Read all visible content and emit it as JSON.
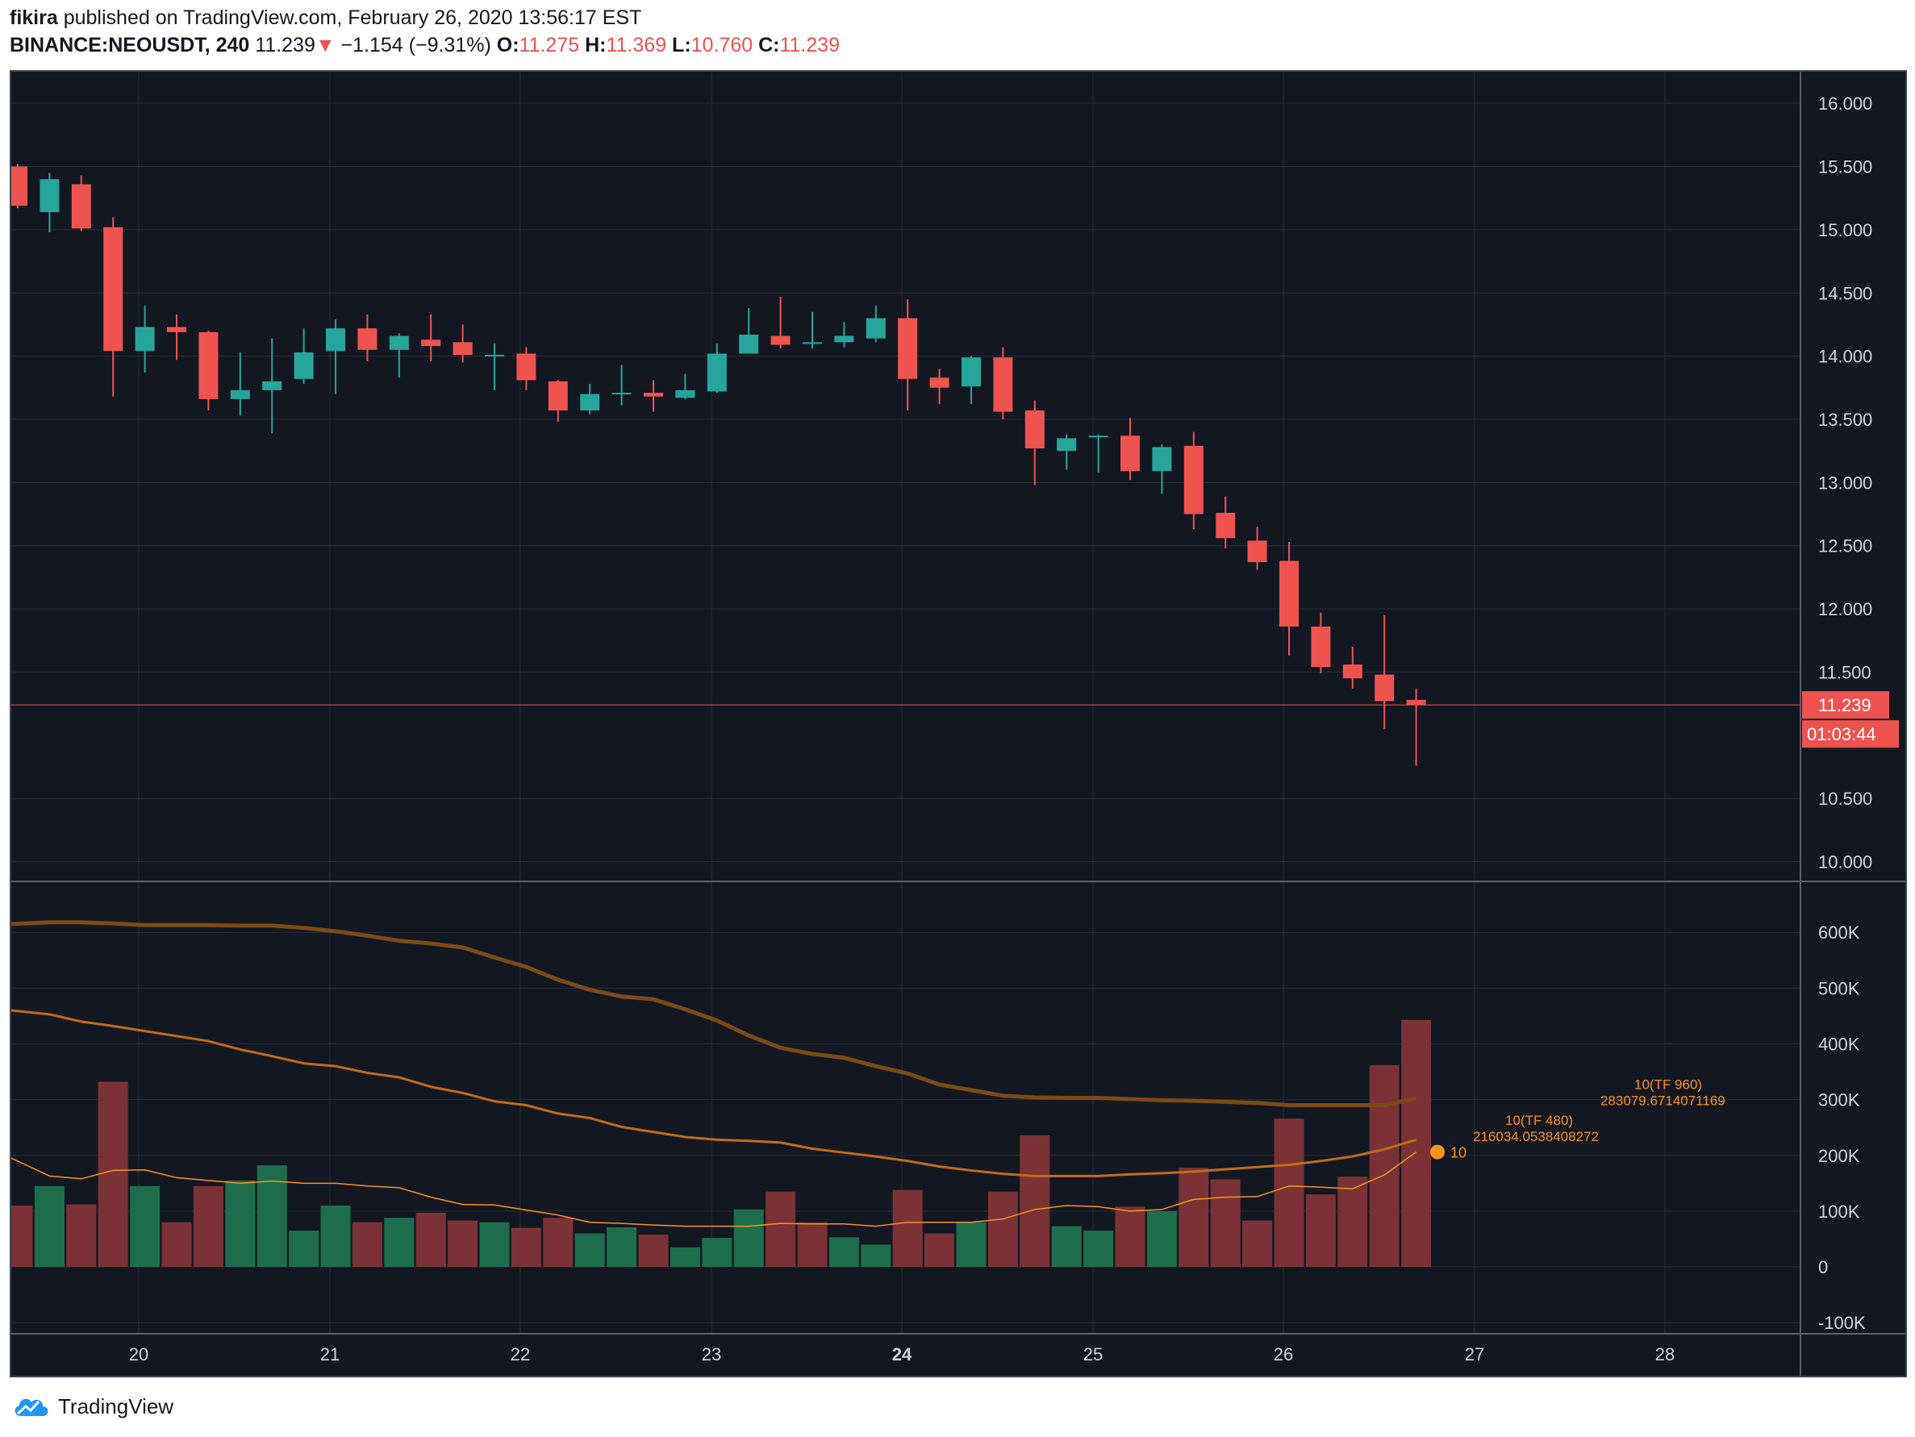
{
  "header": {
    "author": "fikira",
    "published_text": "published on TradingView.com, February 26, 2020 13:56:17 EST",
    "symbol": "BINANCE:NEOUSDT, 240",
    "last": "11.239",
    "change": "−1.154 (−9.31%)",
    "o_label": "O:",
    "o_value": "11.275",
    "h_label": "H:",
    "h_value": "11.369",
    "l_label": "L:",
    "l_value": "10.760",
    "c_label": "C:",
    "c_value": "11.239"
  },
  "footer": {
    "brand": "TradingView"
  },
  "colors": {
    "up": "#26a69a",
    "down": "#ef5350",
    "background": "#131722",
    "grid": "#2a2e39",
    "text": "#d1d4dc",
    "ma": "#f7931a"
  },
  "chart_data": {
    "type": "candlestick",
    "timeframe": "240",
    "x_tick_labels": [
      "20",
      "21",
      "22",
      "23",
      "24",
      "25",
      "26",
      "27",
      "28"
    ],
    "price_axis": {
      "ticks": [
        "16.000",
        "15.500",
        "15.000",
        "14.500",
        "14.000",
        "13.500",
        "13.000",
        "12.500",
        "12.000",
        "11.500",
        "10.500",
        "10.000"
      ],
      "range": [
        9.85,
        16.25
      ]
    },
    "last_price_label": "11.239",
    "countdown_label": "01:03:44",
    "candles": [
      {
        "o": 15.5,
        "h": 15.52,
        "l": 15.17,
        "c": 15.19
      },
      {
        "o": 15.14,
        "h": 15.45,
        "l": 14.98,
        "c": 15.4
      },
      {
        "o": 15.36,
        "h": 15.43,
        "l": 14.99,
        "c": 15.01
      },
      {
        "o": 15.02,
        "h": 15.1,
        "l": 13.68,
        "c": 14.04
      },
      {
        "o": 14.04,
        "h": 14.4,
        "l": 13.87,
        "c": 14.23
      },
      {
        "o": 14.23,
        "h": 14.33,
        "l": 13.97,
        "c": 14.19
      },
      {
        "o": 14.19,
        "h": 14.2,
        "l": 13.57,
        "c": 13.66
      },
      {
        "o": 13.66,
        "h": 14.03,
        "l": 13.53,
        "c": 13.73
      },
      {
        "o": 13.73,
        "h": 14.14,
        "l": 13.39,
        "c": 13.8
      },
      {
        "o": 13.82,
        "h": 14.22,
        "l": 13.78,
        "c": 14.03
      },
      {
        "o": 14.04,
        "h": 14.29,
        "l": 13.7,
        "c": 14.22
      },
      {
        "o": 14.22,
        "h": 14.33,
        "l": 13.96,
        "c": 14.05
      },
      {
        "o": 14.05,
        "h": 14.18,
        "l": 13.83,
        "c": 14.16
      },
      {
        "o": 14.13,
        "h": 14.33,
        "l": 13.96,
        "c": 14.08
      },
      {
        "o": 14.11,
        "h": 14.25,
        "l": 13.95,
        "c": 14.01
      },
      {
        "o": 14.0,
        "h": 14.1,
        "l": 13.73,
        "c": 14.01
      },
      {
        "o": 14.02,
        "h": 14.07,
        "l": 13.73,
        "c": 13.81
      },
      {
        "o": 13.8,
        "h": 13.81,
        "l": 13.48,
        "c": 13.57
      },
      {
        "o": 13.57,
        "h": 13.78,
        "l": 13.54,
        "c": 13.7
      },
      {
        "o": 13.7,
        "h": 13.93,
        "l": 13.61,
        "c": 13.71
      },
      {
        "o": 13.71,
        "h": 13.81,
        "l": 13.56,
        "c": 13.68
      },
      {
        "o": 13.67,
        "h": 13.86,
        "l": 13.66,
        "c": 13.73
      },
      {
        "o": 13.72,
        "h": 14.1,
        "l": 13.71,
        "c": 14.02
      },
      {
        "o": 14.02,
        "h": 14.38,
        "l": 14.02,
        "c": 14.17
      },
      {
        "o": 14.16,
        "h": 14.47,
        "l": 14.06,
        "c": 14.09
      },
      {
        "o": 14.1,
        "h": 14.35,
        "l": 14.06,
        "c": 14.11
      },
      {
        "o": 14.11,
        "h": 14.27,
        "l": 14.07,
        "c": 14.16
      },
      {
        "o": 14.14,
        "h": 14.4,
        "l": 14.11,
        "c": 14.3
      },
      {
        "o": 14.3,
        "h": 14.45,
        "l": 13.57,
        "c": 13.82
      },
      {
        "o": 13.83,
        "h": 13.9,
        "l": 13.62,
        "c": 13.75
      },
      {
        "o": 13.76,
        "h": 14.0,
        "l": 13.62,
        "c": 13.99
      },
      {
        "o": 13.99,
        "h": 14.07,
        "l": 13.5,
        "c": 13.56
      },
      {
        "o": 13.57,
        "h": 13.65,
        "l": 12.98,
        "c": 13.27
      },
      {
        "o": 13.25,
        "h": 13.38,
        "l": 13.1,
        "c": 13.35
      },
      {
        "o": 13.36,
        "h": 13.38,
        "l": 13.08,
        "c": 13.37
      },
      {
        "o": 13.37,
        "h": 13.51,
        "l": 13.02,
        "c": 13.09
      },
      {
        "o": 13.09,
        "h": 13.3,
        "l": 12.91,
        "c": 13.28
      },
      {
        "o": 13.29,
        "h": 13.4,
        "l": 12.63,
        "c": 12.75
      },
      {
        "o": 12.76,
        "h": 12.89,
        "l": 12.48,
        "c": 12.56
      },
      {
        "o": 12.54,
        "h": 12.65,
        "l": 12.31,
        "c": 12.37
      },
      {
        "o": 12.38,
        "h": 12.53,
        "l": 11.63,
        "c": 11.86
      },
      {
        "o": 11.86,
        "h": 11.97,
        "l": 11.49,
        "c": 11.54
      },
      {
        "o": 11.56,
        "h": 11.7,
        "l": 11.37,
        "c": 11.45
      },
      {
        "o": 11.48,
        "h": 11.95,
        "l": 11.05,
        "c": 11.27
      },
      {
        "o": 11.28,
        "h": 11.37,
        "l": 10.76,
        "c": 11.24
      }
    ],
    "volume": {
      "axis_ticks": [
        "600K",
        "500K",
        "400K",
        "300K",
        "200K",
        "100K",
        "0",
        "-100K"
      ],
      "range": [
        -120000,
        690000
      ],
      "bars": [
        {
          "v": 110000,
          "up": false
        },
        {
          "v": 145000,
          "up": true
        },
        {
          "v": 112000,
          "up": false
        },
        {
          "v": 332000,
          "up": false
        },
        {
          "v": 145000,
          "up": true
        },
        {
          "v": 80000,
          "up": false
        },
        {
          "v": 145000,
          "up": false
        },
        {
          "v": 155000,
          "up": true
        },
        {
          "v": 182000,
          "up": true
        },
        {
          "v": 65000,
          "up": true
        },
        {
          "v": 110000,
          "up": true
        },
        {
          "v": 80000,
          "up": false
        },
        {
          "v": 88000,
          "up": true
        },
        {
          "v": 97000,
          "up": false
        },
        {
          "v": 83000,
          "up": false
        },
        {
          "v": 80000,
          "up": true
        },
        {
          "v": 70000,
          "up": false
        },
        {
          "v": 88000,
          "up": false
        },
        {
          "v": 60000,
          "up": true
        },
        {
          "v": 71000,
          "up": true
        },
        {
          "v": 58000,
          "up": false
        },
        {
          "v": 35000,
          "up": true
        },
        {
          "v": 52000,
          "up": true
        },
        {
          "v": 103000,
          "up": true
        },
        {
          "v": 135000,
          "up": false
        },
        {
          "v": 80000,
          "up": false
        },
        {
          "v": 53000,
          "up": true
        },
        {
          "v": 40000,
          "up": true
        },
        {
          "v": 138000,
          "up": false
        },
        {
          "v": 60000,
          "up": false
        },
        {
          "v": 80000,
          "up": true
        },
        {
          "v": 135000,
          "up": false
        },
        {
          "v": 236000,
          "up": false
        },
        {
          "v": 73000,
          "up": true
        },
        {
          "v": 65000,
          "up": true
        },
        {
          "v": 108000,
          "up": false
        },
        {
          "v": 100000,
          "up": true
        },
        {
          "v": 178000,
          "up": false
        },
        {
          "v": 157000,
          "up": false
        },
        {
          "v": 83000,
          "up": false
        },
        {
          "v": 266000,
          "up": false
        },
        {
          "v": 130000,
          "up": false
        },
        {
          "v": 162000,
          "up": false
        },
        {
          "v": 362000,
          "up": false
        },
        {
          "v": 443000,
          "up": false
        }
      ]
    },
    "ma_series": [
      {
        "label_line1": "10(TF 960)",
        "label_line2": "283079.6714071169",
        "values": [
          615000,
          618000,
          618000,
          616000,
          613000,
          613000,
          613000,
          612000,
          612000,
          608000,
          602000,
          594000,
          585000,
          580000,
          573000,
          555000,
          538000,
          515000,
          497000,
          485000,
          480000,
          462000,
          442000,
          415000,
          393000,
          382000,
          375000,
          360000,
          347000,
          327000,
          317000,
          307000,
          304000,
          303000,
          303000,
          301000,
          299000,
          298000,
          296000,
          294000,
          290000,
          290000,
          290000,
          290000,
          302000
        ]
      },
      {
        "label_line1": "10(TF 480)",
        "label_line2": "216034.0538408272",
        "values": [
          460000,
          453000,
          440000,
          432000,
          423000,
          414000,
          405000,
          390000,
          378000,
          365000,
          360000,
          348000,
          340000,
          323000,
          312000,
          297000,
          290000,
          275000,
          267000,
          251000,
          242000,
          233000,
          228000,
          226000,
          223000,
          212000,
          205000,
          198000,
          190000,
          180000,
          173000,
          167000,
          163000,
          163000,
          163000,
          166000,
          168000,
          171000,
          175000,
          179000,
          183000,
          190000,
          198000,
          211000,
          228000
        ]
      },
      {
        "label_line1": "10",
        "label_line2": "",
        "values": [
          195000,
          163000,
          158000,
          173000,
          174000,
          160000,
          155000,
          150000,
          154000,
          150000,
          150000,
          145000,
          142000,
          125000,
          112000,
          111000,
          102000,
          93000,
          80000,
          78000,
          75000,
          73000,
          73000,
          73000,
          78000,
          77000,
          77000,
          73000,
          80000,
          80000,
          80000,
          86000,
          103000,
          110000,
          108000,
          100000,
          103000,
          121000,
          125000,
          126000,
          145000,
          143000,
          140000,
          165000,
          206000
        ]
      }
    ]
  }
}
